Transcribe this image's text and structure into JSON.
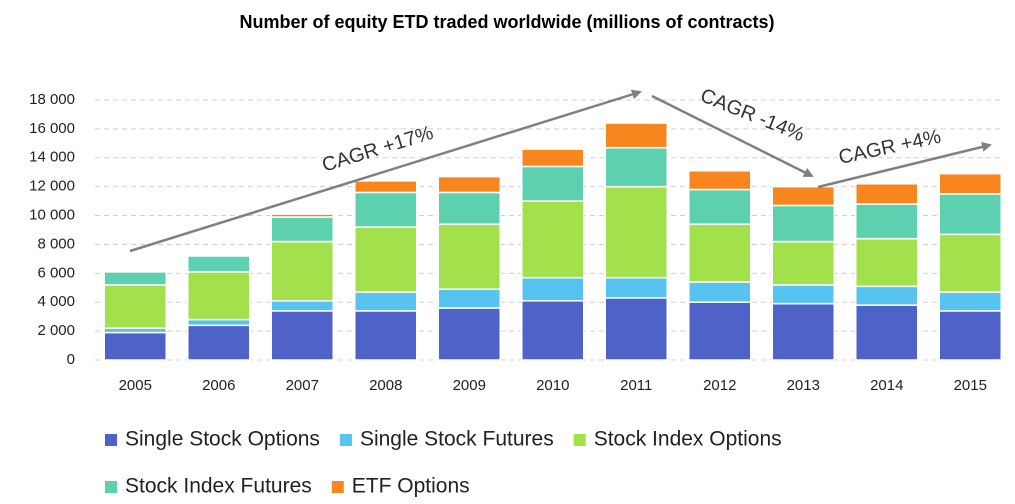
{
  "chart_data": {
    "type": "bar",
    "stacked": true,
    "title": "Number of equity ETD traded worldwide (millions of contracts)",
    "categories": [
      "2005",
      "2006",
      "2007",
      "2008",
      "2009",
      "2010",
      "2011",
      "2012",
      "2013",
      "2014",
      "2015"
    ],
    "series": [
      {
        "name": "Single Stock Options",
        "color": "#4e62c8",
        "values": [
          1900,
          2400,
          3400,
          3400,
          3600,
          4100,
          4300,
          4000,
          3900,
          3800,
          3400
        ]
      },
      {
        "name": "Single Stock Futures",
        "color": "#57c3f0",
        "values": [
          300,
          400,
          700,
          1300,
          1300,
          1600,
          1400,
          1400,
          1300,
          1300,
          1300
        ]
      },
      {
        "name": "Stock Index Options",
        "color": "#a2e04c",
        "values": [
          3000,
          3300,
          4100,
          4500,
          4500,
          5300,
          6300,
          4000,
          3000,
          3300,
          4000
        ]
      },
      {
        "name": "Stock Index Futures",
        "color": "#5dd0b0",
        "values": [
          900,
          1100,
          1700,
          2400,
          2200,
          2400,
          2700,
          2400,
          2500,
          2400,
          2800
        ]
      },
      {
        "name": "ETF Options",
        "color": "#f7861f",
        "values": [
          0,
          0,
          200,
          800,
          1100,
          1200,
          1700,
          1300,
          1300,
          1400,
          1400
        ]
      }
    ],
    "ylim": [
      0,
      18000
    ],
    "yticks": [
      0,
      {
        "value": 2000,
        "label": "2 000"
      },
      {
        "value": 4000,
        "label": "4 000"
      },
      {
        "value": 6000,
        "label": "6 000"
      },
      {
        "value": 8000,
        "label": "8 000"
      },
      {
        "value": 10000,
        "label": "10 000"
      },
      {
        "value": 12000,
        "label": "12 000"
      },
      {
        "value": 14000,
        "label": "14 000"
      },
      {
        "value": 16000,
        "label": "16 000"
      },
      {
        "value": 18000,
        "label": "18 000"
      }
    ],
    "grid": true,
    "annotations": [
      "CAGR +17%",
      "CAGR -14%",
      "CAGR +4%"
    ]
  }
}
